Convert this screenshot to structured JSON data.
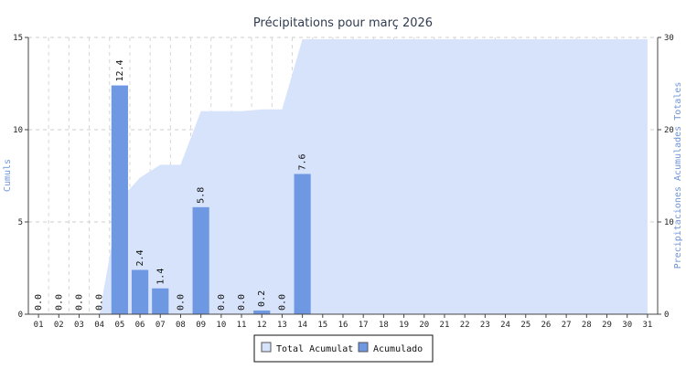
{
  "chart_data": {
    "type": "bar",
    "title": "Précipitations pour març 2026",
    "xlabel": "",
    "ylabel_left": "Cumuls",
    "ylabel_right": "Precipitaciones Acumulades Totales",
    "ylim_left": [
      0,
      15
    ],
    "ylim_right": [
      0,
      30
    ],
    "yticks_left": [
      0,
      5,
      10,
      15
    ],
    "yticks_right": [
      0,
      10,
      20,
      30
    ],
    "grid": true,
    "legend_position": "bottom-center",
    "categories": [
      "01",
      "02",
      "03",
      "04",
      "05",
      "06",
      "07",
      "08",
      "09",
      "10",
      "11",
      "12",
      "13",
      "14",
      "15",
      "16",
      "17",
      "18",
      "19",
      "20",
      "21",
      "22",
      "23",
      "24",
      "25",
      "26",
      "27",
      "28",
      "29",
      "30",
      "31"
    ],
    "data_labels": [
      "0.0",
      "0.0",
      "0.0",
      "0.0",
      "12.4",
      "2.4",
      "1.4",
      "0.0",
      "5.8",
      "0.0",
      "0.0",
      "0.2",
      "0.0",
      "7.6"
    ],
    "series": [
      {
        "name": "Total Acumulat",
        "type": "area",
        "axis": "right",
        "color": "#d6e3fb",
        "values": [
          0.0,
          0.0,
          0.0,
          0.0,
          12.4,
          14.8,
          16.2,
          16.2,
          22.0,
          22.0,
          22.0,
          22.2,
          22.2,
          29.8,
          29.8,
          29.8,
          29.8,
          29.8,
          29.8,
          29.8,
          29.8,
          29.8,
          29.8,
          29.8,
          29.8,
          29.8,
          29.8,
          29.8,
          29.8,
          29.8,
          29.8
        ]
      },
      {
        "name": "Acumulado",
        "type": "bar",
        "axis": "left",
        "color": "#6f98e3",
        "values": [
          0.0,
          0.0,
          0.0,
          0.0,
          12.4,
          2.4,
          1.4,
          0.0,
          5.8,
          0.0,
          0.0,
          0.2,
          0.0,
          7.6,
          null,
          null,
          null,
          null,
          null,
          null,
          null,
          null,
          null,
          null,
          null,
          null,
          null,
          null,
          null,
          null,
          null
        ]
      }
    ]
  }
}
